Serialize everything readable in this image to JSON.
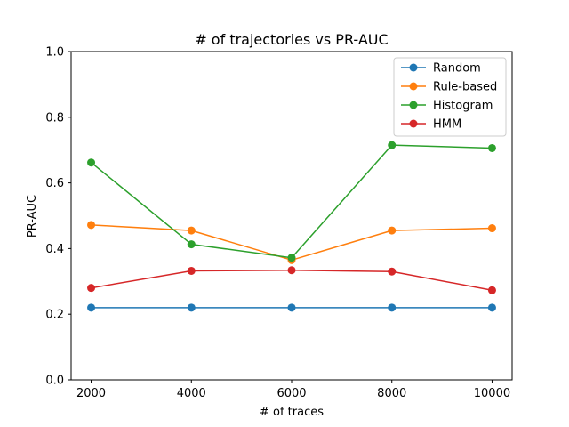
{
  "chart_data": {
    "type": "line",
    "title": "# of trajectories vs PR-AUC",
    "xlabel": "# of traces",
    "ylabel": "PR-AUC",
    "x": [
      2000,
      4000,
      6000,
      8000,
      10000
    ],
    "x_ticks": [
      2000,
      4000,
      6000,
      8000,
      10000
    ],
    "x_tick_labels": [
      "2000",
      "4000",
      "6000",
      "8000",
      "10000"
    ],
    "xlim": [
      1600,
      10400
    ],
    "ylim": [
      0.0,
      1.0
    ],
    "y_ticks": [
      0.0,
      0.2,
      0.4,
      0.6,
      0.8,
      1.0
    ],
    "y_tick_labels": [
      "0.0",
      "0.2",
      "0.4",
      "0.6",
      "0.8",
      "1.0"
    ],
    "grid": false,
    "legend_position": "top-right",
    "series": [
      {
        "name": "Random",
        "color": "#1f77b4",
        "values": [
          0.22,
          0.22,
          0.22,
          0.22,
          0.22
        ]
      },
      {
        "name": "Rule-based",
        "color": "#ff7f0e",
        "values": [
          0.472,
          0.455,
          0.365,
          0.455,
          0.462
        ]
      },
      {
        "name": "Histogram",
        "color": "#2ca02c",
        "values": [
          0.662,
          0.413,
          0.372,
          0.715,
          0.706
        ]
      },
      {
        "name": "HMM",
        "color": "#d62728",
        "values": [
          0.28,
          0.332,
          0.334,
          0.33,
          0.273
        ]
      }
    ]
  }
}
